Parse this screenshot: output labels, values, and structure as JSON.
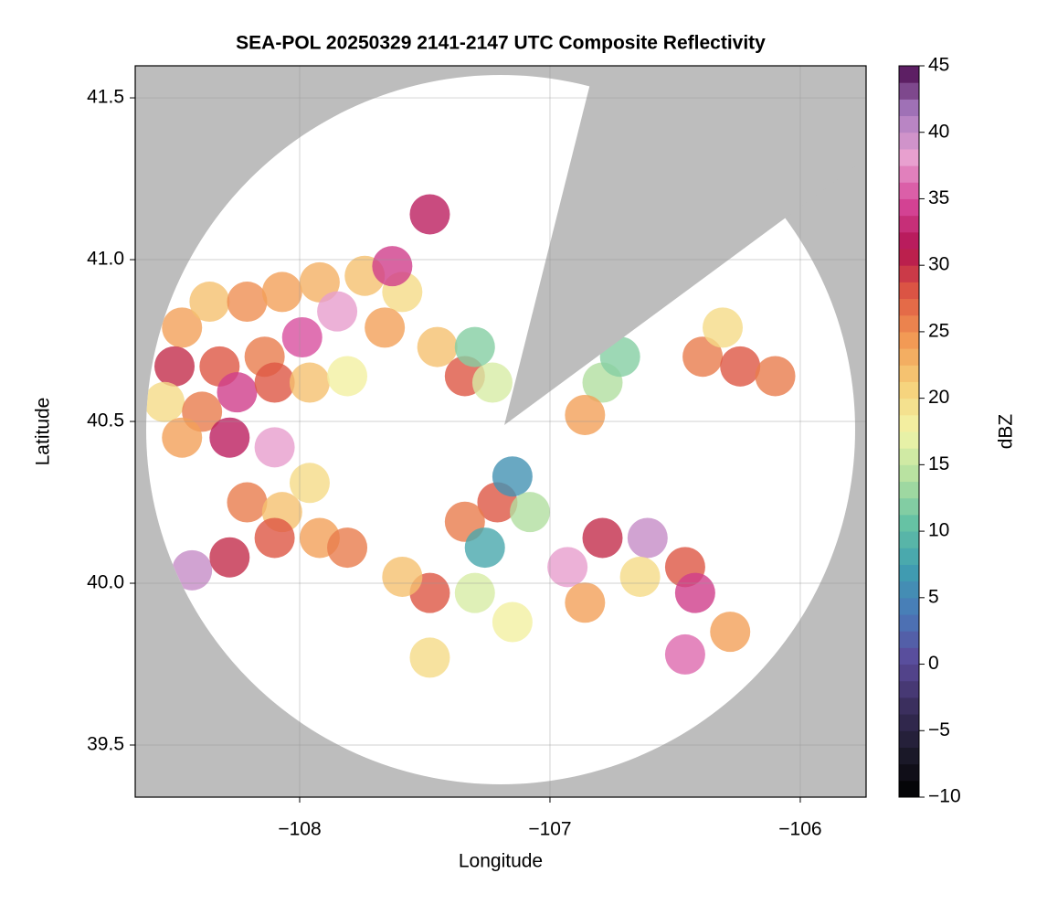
{
  "chart_data": {
    "type": "scatter",
    "title": "SEA-POL 20250329 2141-2147 UTC Composite Reflectivity",
    "x_label": "Longitude",
    "y_label": "Latitude",
    "xlim": [
      -108.657,
      -105.737
    ],
    "ylim": [
      39.339,
      41.599
    ],
    "xticks": [
      {
        "value": -108,
        "label": "−108"
      },
      {
        "value": -107,
        "label": "−107"
      },
      {
        "value": -106,
        "label": "−106"
      }
    ],
    "yticks": [
      39.5,
      {
        "value": 40,
        "label": "40.0"
      },
      40.5,
      {
        "value": 41,
        "label": "41.0"
      },
      41.5
    ],
    "grid": true,
    "colorbar": {
      "label": "dBZ",
      "lim": [
        -10,
        45
      ],
      "ticks": [
        {
          "value": -10,
          "label": "−10"
        },
        {
          "value": -5,
          "label": "−5"
        },
        0,
        5,
        10,
        15,
        20,
        25,
        30,
        35,
        40,
        45
      ]
    },
    "colormap": [
      "#000000",
      "#1d1a2c",
      "#3b2f5e",
      "#5b4a9a",
      "#4a78b8",
      "#3f9fb0",
      "#66c2a4",
      "#b3e0a0",
      "#f2f5a8",
      "#f6d17a",
      "#f29a55",
      "#df5a43",
      "#b3134f",
      "#d6479a",
      "#e8a0cf",
      "#a77bc0",
      "#4d0a4f"
    ],
    "cells": {
      "x": [
        -108.47,
        -108.36,
        -108.21,
        -108.07,
        -107.92,
        -107.74,
        -107.59,
        -108.5,
        -108.32,
        -108.14,
        -107.99,
        -107.85,
        -107.66,
        -108.54,
        -108.39,
        -108.25,
        -108.1,
        -107.96,
        -107.81,
        -108.47,
        -108.28,
        -108.1,
        -107.45,
        -107.34,
        -107.23,
        -107.3,
        -106.79,
        -106.86,
        -106.72,
        -106.39,
        -106.24,
        -106.1,
        -106.31,
        -107.21,
        -107.34,
        -107.15,
        -107.26,
        -107.08,
        -107.48,
        -107.59,
        -107.3,
        -106.93,
        -106.79,
        -106.61,
        -106.64,
        -106.46,
        -106.42,
        -106.86,
        -107.48,
        -107.15,
        -106.46,
        -106.28,
        -108.21,
        -108.07,
        -107.92,
        -108.43,
        -108.28,
        -108.1,
        -107.81,
        -107.96,
        -107.48,
        -107.63
      ],
      "y": [
        40.79,
        40.87,
        40.87,
        40.9,
        40.93,
        40.95,
        40.9,
        40.67,
        40.67,
        40.7,
        40.76,
        40.84,
        40.79,
        40.56,
        40.53,
        40.59,
        40.62,
        40.62,
        40.64,
        40.45,
        40.45,
        40.42,
        40.73,
        40.64,
        40.62,
        40.73,
        40.62,
        40.52,
        40.7,
        40.7,
        40.67,
        40.64,
        40.79,
        40.25,
        40.19,
        40.33,
        40.11,
        40.22,
        39.97,
        40.02,
        39.97,
        40.05,
        40.14,
        40.14,
        40.02,
        40.05,
        39.97,
        39.94,
        39.77,
        39.88,
        39.78,
        39.85,
        40.25,
        40.22,
        40.14,
        40.04,
        40.08,
        40.14,
        40.11,
        40.31,
        41.14,
        40.98
      ],
      "values": [
        24,
        22,
        25,
        24,
        23,
        22,
        20,
        30,
        28,
        26,
        35,
        38,
        24,
        20,
        26,
        34,
        28,
        22,
        18,
        24,
        32,
        38,
        22,
        28,
        16,
        12,
        14,
        24,
        12,
        26,
        28,
        26,
        20,
        28,
        26,
        6,
        8,
        14,
        28,
        22,
        16,
        38,
        30,
        40,
        20,
        28,
        34,
        24,
        20,
        18,
        36,
        24,
        26,
        22,
        24,
        40,
        30,
        28,
        26,
        20,
        32,
        34
      ]
    }
  }
}
